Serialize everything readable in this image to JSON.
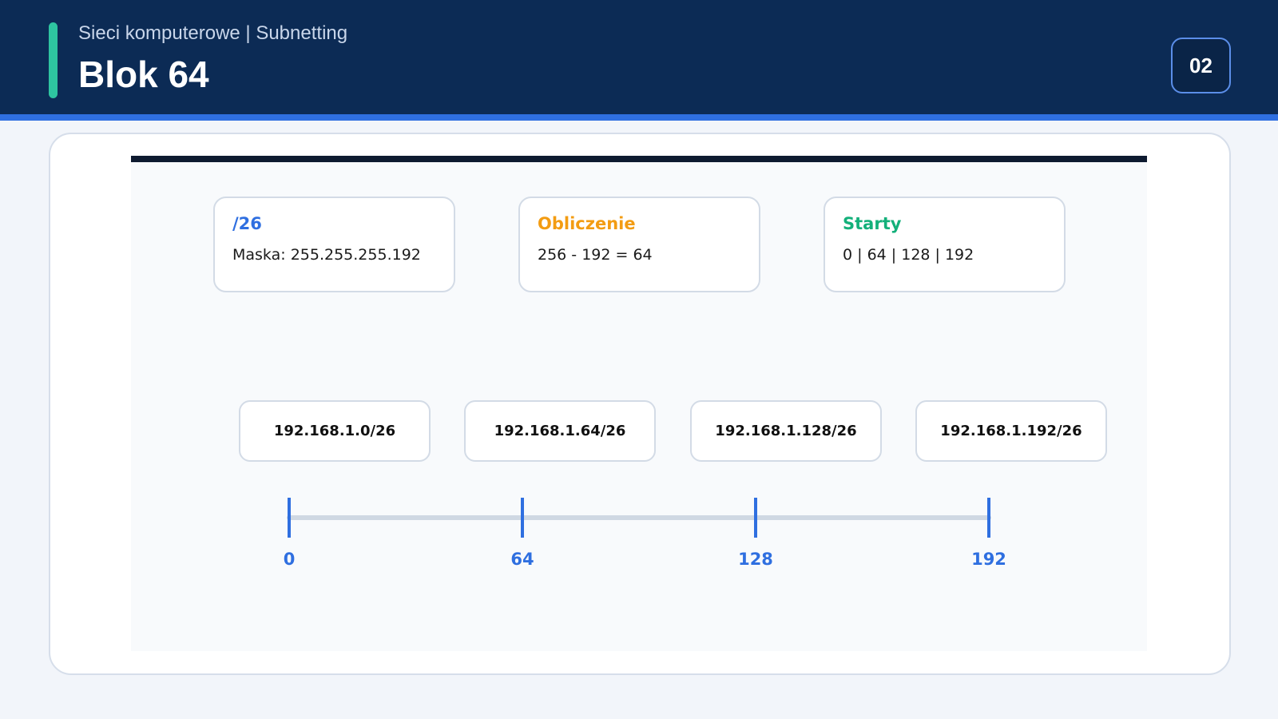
{
  "header": {
    "subtitle": "Sieci komputerowe | Subnetting",
    "title": "Blok 64",
    "page_number": "02"
  },
  "colors": {
    "header_bg": "#0c2b55",
    "accent": "#2ec4a0",
    "blue": "#2f6fe0",
    "orange": "#f39c12",
    "green": "#13b07a"
  },
  "info_boxes": [
    {
      "title": "/26",
      "value": "Maska: 255.255.255.192",
      "color": "#2f6fe0"
    },
    {
      "title": "Obliczenie",
      "value": "256 - 192 = 64",
      "color": "#f39c12"
    },
    {
      "title": "Starty",
      "value": "0 | 64 | 128 | 192",
      "color": "#13b07a"
    }
  ],
  "networks": [
    "192.168.1.0/26",
    "192.168.1.64/26",
    "192.168.1.128/26",
    "192.168.1.192/26"
  ],
  "axis": {
    "ticks": [
      0,
      64,
      128,
      192
    ],
    "labels": [
      "0",
      "64",
      "128",
      "192"
    ]
  }
}
